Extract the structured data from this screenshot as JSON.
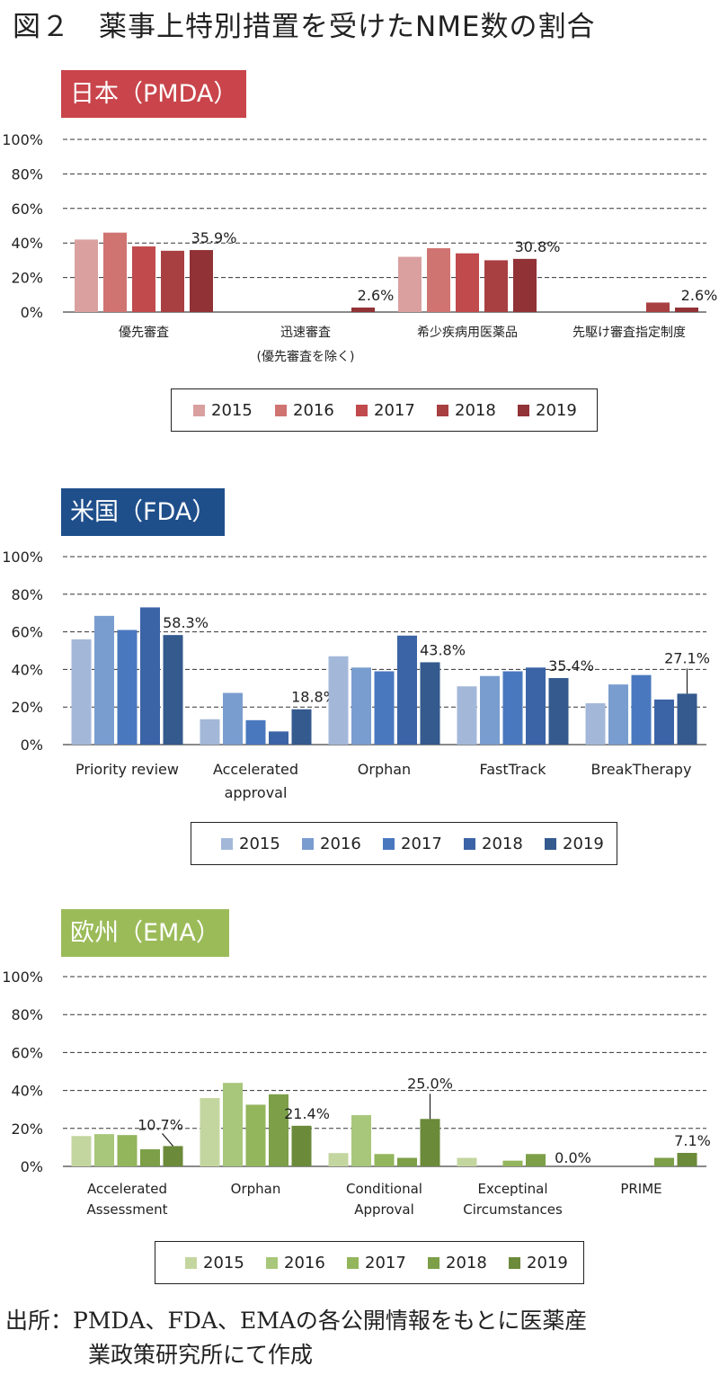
{
  "figure_title": "図２　薬事上特別措置を受けたNME数の割合",
  "source_note": {
    "line1": "出所：PMDA、FDA、EMAの各公開情報をもとに医薬産",
    "line2": "業政策研究所にて作成"
  },
  "chart_data": [
    {
      "type": "bar",
      "title": "日本（PMDA）",
      "title_color": "#c9454b",
      "categories": [
        [
          "優先審査"
        ],
        [
          "迅速審査",
          "(優先審査を除く)"
        ],
        [
          "希少疾病用医薬品"
        ],
        [
          "先駆け審査指定制度"
        ]
      ],
      "series": [
        {
          "name": "2015",
          "color": "#d9a09f",
          "values": [
            42,
            0,
            32,
            0
          ]
        },
        {
          "name": "2016",
          "color": "#d07472",
          "values": [
            46,
            0,
            37,
            0
          ]
        },
        {
          "name": "2017",
          "color": "#c04a4c",
          "values": [
            38,
            0,
            34,
            0
          ]
        },
        {
          "name": "2018",
          "color": "#a84042",
          "values": [
            35.5,
            0,
            30,
            5.5
          ]
        },
        {
          "name": "2019",
          "color": "#913236",
          "values": [
            35.9,
            2.6,
            30.8,
            2.6
          ]
        }
      ],
      "data_labels": [
        "35.9%",
        "2.6%",
        "30.8%",
        "2.6%"
      ],
      "ylim": [
        0,
        100
      ],
      "yticks": [
        "0%",
        "20%",
        "40%",
        "60%",
        "80%",
        "100%"
      ],
      "grid": "dashed"
    },
    {
      "type": "bar",
      "title": "米国（FDA）",
      "title_color": "#1f4f8b",
      "categories": [
        [
          "Priority review"
        ],
        [
          "Accelerated",
          "approval"
        ],
        [
          "Orphan"
        ],
        [
          "FastTrack"
        ],
        [
          "BreakTherapy"
        ]
      ],
      "series": [
        {
          "name": "2015",
          "color": "#a3b8d9",
          "values": [
            56,
            13.5,
            47,
            31,
            22
          ]
        },
        {
          "name": "2016",
          "color": "#7a9dcf",
          "values": [
            68.5,
            27.5,
            41,
            36.5,
            32
          ]
        },
        {
          "name": "2017",
          "color": "#4a78bf",
          "values": [
            61,
            13,
            39,
            39,
            37
          ]
        },
        {
          "name": "2018",
          "color": "#3b64a6",
          "values": [
            73,
            7,
            58,
            41,
            24
          ]
        },
        {
          "name": "2019",
          "color": "#345a8e",
          "values": [
            58.3,
            18.8,
            43.8,
            35.4,
            27.1
          ]
        }
      ],
      "data_labels": [
        "58.3%",
        "18.8%",
        "43.8%",
        "35.4%",
        "27.1%"
      ],
      "ylim": [
        0,
        100
      ],
      "yticks": [
        "0%",
        "20%",
        "40%",
        "60%",
        "80%",
        "100%"
      ],
      "grid": "dashed"
    },
    {
      "type": "bar",
      "title": "欧州（EMA）",
      "title_color": "#9bbb59",
      "categories": [
        [
          "Accelerated",
          "Assessment"
        ],
        [
          "Orphan"
        ],
        [
          "Conditional",
          "Approval"
        ],
        [
          "Exceptinal",
          "Circumstances"
        ],
        [
          "PRIME"
        ]
      ],
      "series": [
        {
          "name": "2015",
          "color": "#c4d6a0",
          "values": [
            16,
            36,
            7,
            4.5,
            0
          ]
        },
        {
          "name": "2016",
          "color": "#a8c77a",
          "values": [
            17,
            44,
            27,
            0,
            0
          ]
        },
        {
          "name": "2017",
          "color": "#93b55c",
          "values": [
            16.5,
            32.5,
            6.5,
            3,
            0
          ]
        },
        {
          "name": "2018",
          "color": "#7c9f48",
          "values": [
            9,
            38,
            4.5,
            6.5,
            4.5
          ]
        },
        {
          "name": "2019",
          "color": "#6b8a3a",
          "values": [
            10.7,
            21.4,
            25.0,
            0.0,
            7.1
          ]
        }
      ],
      "data_labels": [
        "10.7%",
        "21.4%",
        "25.0%",
        "0.0%",
        "7.1%"
      ],
      "ylim": [
        0,
        100
      ],
      "yticks": [
        "0%",
        "20%",
        "40%",
        "60%",
        "80%",
        "100%"
      ],
      "grid": "dashed"
    }
  ]
}
